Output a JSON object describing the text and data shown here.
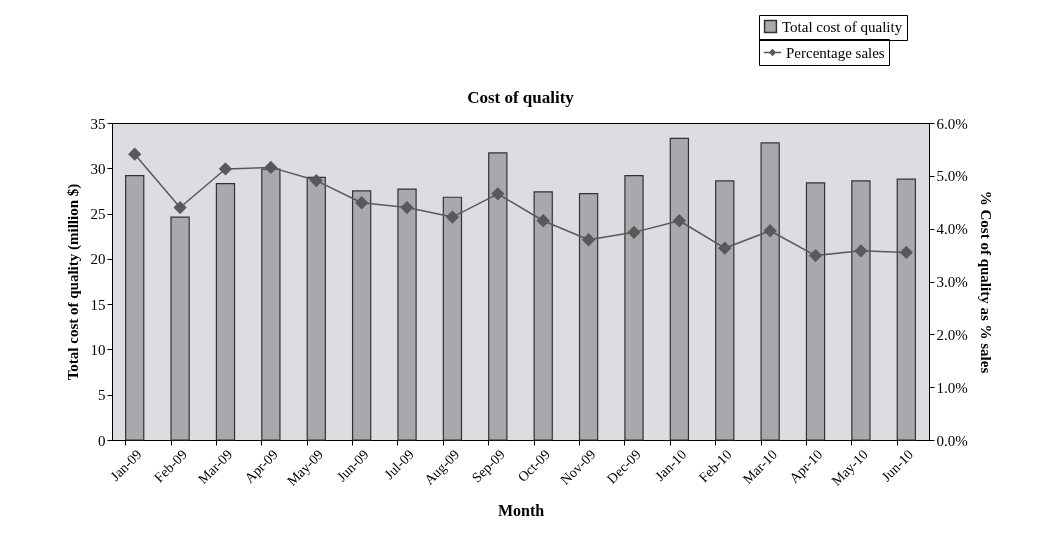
{
  "chart_data": {
    "type": "bar",
    "title": "Cost of quality",
    "xlabel": "Month",
    "ylabel": "Total cost of quality (million $)",
    "y2label": "% Cost of quality as % sales",
    "categories": [
      "Jan-09",
      "Feb-09",
      "Mar-09",
      "Apr-09",
      "May-09",
      "Jun-09",
      "Jul-09",
      "Aug-09",
      "Sep-09",
      "Oct-09",
      "Nov-09",
      "Dec-09",
      "Jan-10",
      "Feb-10",
      "Mar-10",
      "Apr-10",
      "May-10",
      "Jun-10"
    ],
    "series": [
      {
        "name": "Total cost of quality",
        "color": "#a8a9ad",
        "values": [
          29.2,
          24.6,
          28.3,
          29.9,
          29.0,
          27.5,
          27.7,
          26.8,
          31.7,
          27.4,
          27.2,
          29.2,
          33.3,
          28.6,
          32.8,
          28.4,
          28.6,
          28.8
        ]
      },
      {
        "name": "Percentage sales",
        "type": "line",
        "axis": "y2",
        "color": "#595959",
        "marker": "diamond",
        "values": [
          5.41,
          4.4,
          5.13,
          5.16,
          4.91,
          4.49,
          4.4,
          4.22,
          4.66,
          4.15,
          3.79,
          3.93,
          4.15,
          3.63,
          3.96,
          3.49,
          3.58,
          3.55
        ]
      }
    ],
    "ylim": [
      0,
      35
    ],
    "yticks": [
      0,
      5,
      10,
      15,
      20,
      25,
      30,
      35
    ],
    "y2lim": [
      0,
      6
    ],
    "y2ticks": [
      {
        "value": 0,
        "label": "0.0%"
      },
      {
        "value": 1,
        "label": "1.0%"
      },
      {
        "value": 2,
        "label": "2.0%"
      },
      {
        "value": 3,
        "label": "3.0%"
      },
      {
        "value": 4,
        "label": "4.0%"
      },
      {
        "value": 5,
        "label": "5.0%"
      },
      {
        "value": 6,
        "label": "6.0%"
      }
    ],
    "legend": "top right",
    "grid": false
  }
}
